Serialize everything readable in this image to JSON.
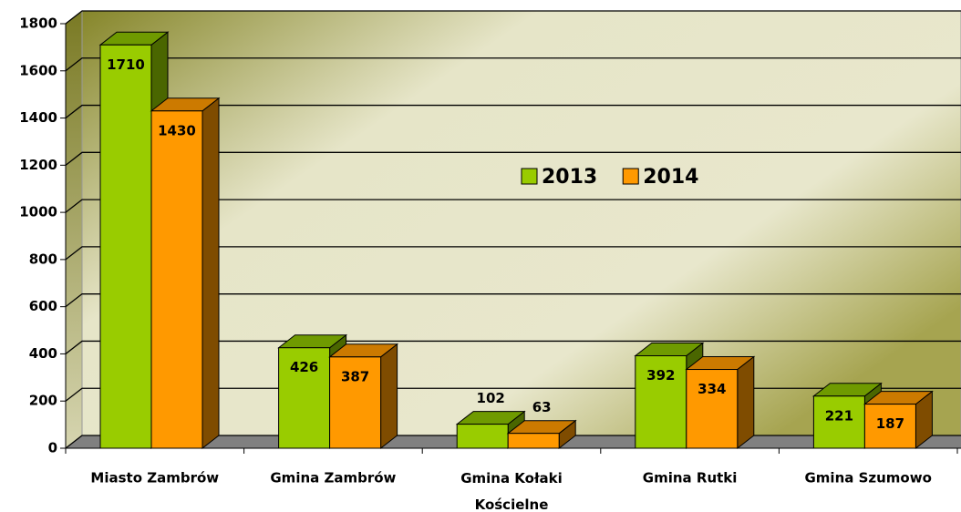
{
  "chart_data": {
    "type": "bar3d",
    "categories": [
      "Miasto Zambrów",
      "Gmina Zambrów",
      "Gmina Kołaki Kościelne",
      "Gmina Rutki",
      "Gmina Szumowo"
    ],
    "series": [
      {
        "name": "2013",
        "color": "#99cc00",
        "values": [
          1710,
          426,
          102,
          392,
          221
        ]
      },
      {
        "name": "2014",
        "color": "#ff9900",
        "values": [
          1430,
          387,
          63,
          334,
          187
        ]
      }
    ],
    "ylim": [
      0,
      1800
    ],
    "yticks": [
      0,
      200,
      400,
      600,
      800,
      1000,
      1200,
      1400,
      1600,
      1800
    ],
    "grid": true
  }
}
